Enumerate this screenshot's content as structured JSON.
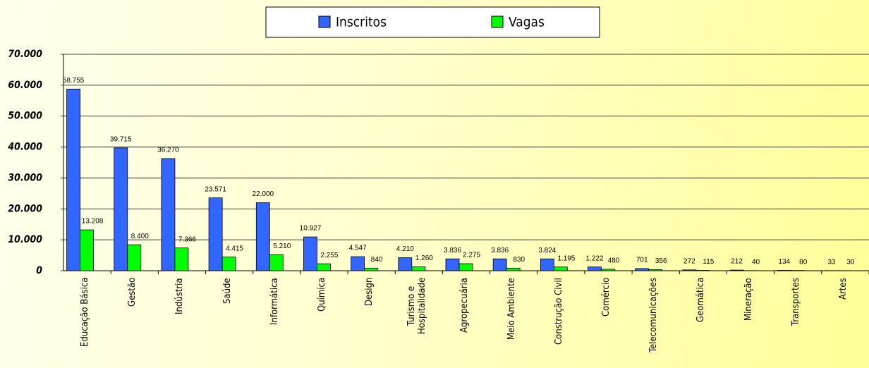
{
  "chart_data": {
    "type": "bar",
    "categories": [
      "Educação Básica",
      "Gestão",
      "Indústria",
      "Saúde",
      "Informática",
      "Química",
      "Design",
      "Turismo e\nHospitalidade",
      "Agropecuária",
      "Meio Ambiente",
      "Construção Civil",
      "Comércio",
      "Telecomunicações",
      "Geomática",
      "Mineração",
      "Transportes",
      "Artes"
    ],
    "series": [
      {
        "name": "Inscritos",
        "color": "#3366ff",
        "values": [
          58755,
          39715,
          36270,
          23571,
          22000,
          10927,
          4547,
          4210,
          3836,
          3836,
          3824,
          1222,
          701,
          272,
          212,
          134,
          33
        ],
        "value_labels": [
          "58.755",
          "39.715",
          "36.270",
          "23.571",
          "22.000",
          "10.927",
          "4.547",
          "4.210",
          "3.836",
          "3.836",
          "3.824",
          "1.222",
          "701",
          "272",
          "212",
          "134",
          "33"
        ]
      },
      {
        "name": "Vagas",
        "color": "#00ff00",
        "values": [
          13208,
          8400,
          7366,
          4415,
          5210,
          2255,
          840,
          1260,
          2275,
          830,
          1195,
          480,
          356,
          115,
          40,
          80,
          30
        ],
        "value_labels": [
          "13.208",
          "8.400",
          "7.366",
          "4.415",
          "5.210",
          "2.255",
          "840",
          "1.260",
          "2.275",
          "830",
          "1.195",
          "480",
          "356",
          "115",
          "40",
          "80",
          "30"
        ]
      }
    ],
    "ylim": [
      0,
      70000
    ],
    "yticks": [
      0,
      {
        "value": 10000,
        "label": "10.000"
      },
      {
        "value": 20000,
        "label": "20.000"
      },
      {
        "value": 30000,
        "label": "30.000"
      },
      {
        "value": 40000,
        "label": "40.000"
      },
      {
        "value": 50000,
        "label": "50.000"
      },
      {
        "value": 60000,
        "label": "60.000"
      },
      {
        "value": 70000,
        "label": "70.000"
      }
    ],
    "grid": true,
    "legend": "top"
  }
}
